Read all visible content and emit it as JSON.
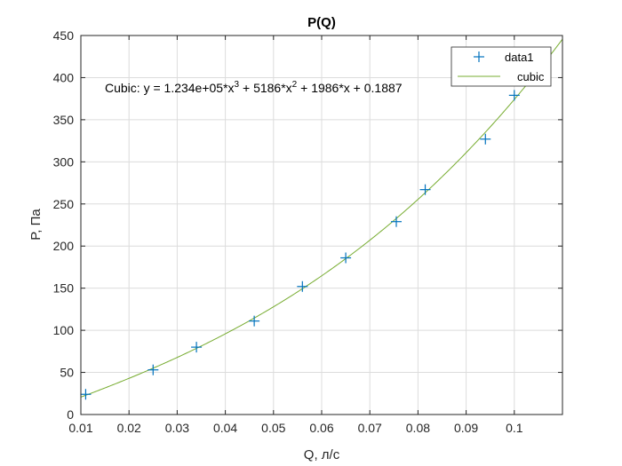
{
  "chart_data": {
    "type": "scatter",
    "title": "P(Q)",
    "xlabel": "Q, л/с",
    "ylabel": "P, Па",
    "xlim": [
      0.01,
      0.11
    ],
    "ylim": [
      0,
      450
    ],
    "xticks": [
      0.01,
      0.02,
      0.03,
      0.04,
      0.05,
      0.06,
      0.07,
      0.08,
      0.09,
      0.1
    ],
    "xtick_labels": [
      "0.01",
      "0.02",
      "0.03",
      "0.04",
      "0.05",
      "0.06",
      "0.07",
      "0.08",
      "0.09",
      "0.1"
    ],
    "yticks": [
      0,
      50,
      100,
      150,
      200,
      250,
      300,
      350,
      400,
      450
    ],
    "ytick_labels": [
      "0",
      "50",
      "100",
      "150",
      "200",
      "250",
      "300",
      "350",
      "400",
      "450"
    ],
    "grid": true,
    "legend_position": "top-right",
    "series": [
      {
        "name": "data1",
        "kind": "marker",
        "marker": "+",
        "color": "#0072BD",
        "x": [
          0.011,
          0.025,
          0.034,
          0.046,
          0.056,
          0.065,
          0.0755,
          0.0815,
          0.094,
          0.1
        ],
        "y": [
          24,
          53,
          80,
          111,
          152,
          186,
          229,
          267,
          327,
          379
        ]
      },
      {
        "name": "cubic",
        "kind": "line",
        "color": "#77AC30",
        "coefficients": [
          123400,
          5186,
          1986,
          0.1887
        ],
        "x_range": [
          0.01,
          0.11
        ]
      }
    ],
    "annotation": {
      "prefix": "Cubic:  y = 1.234e+05*x",
      "exp1": "3",
      "part2": " + 5186*x",
      "exp2": "2",
      "part3": " + 1986*x + 0.1887"
    }
  }
}
